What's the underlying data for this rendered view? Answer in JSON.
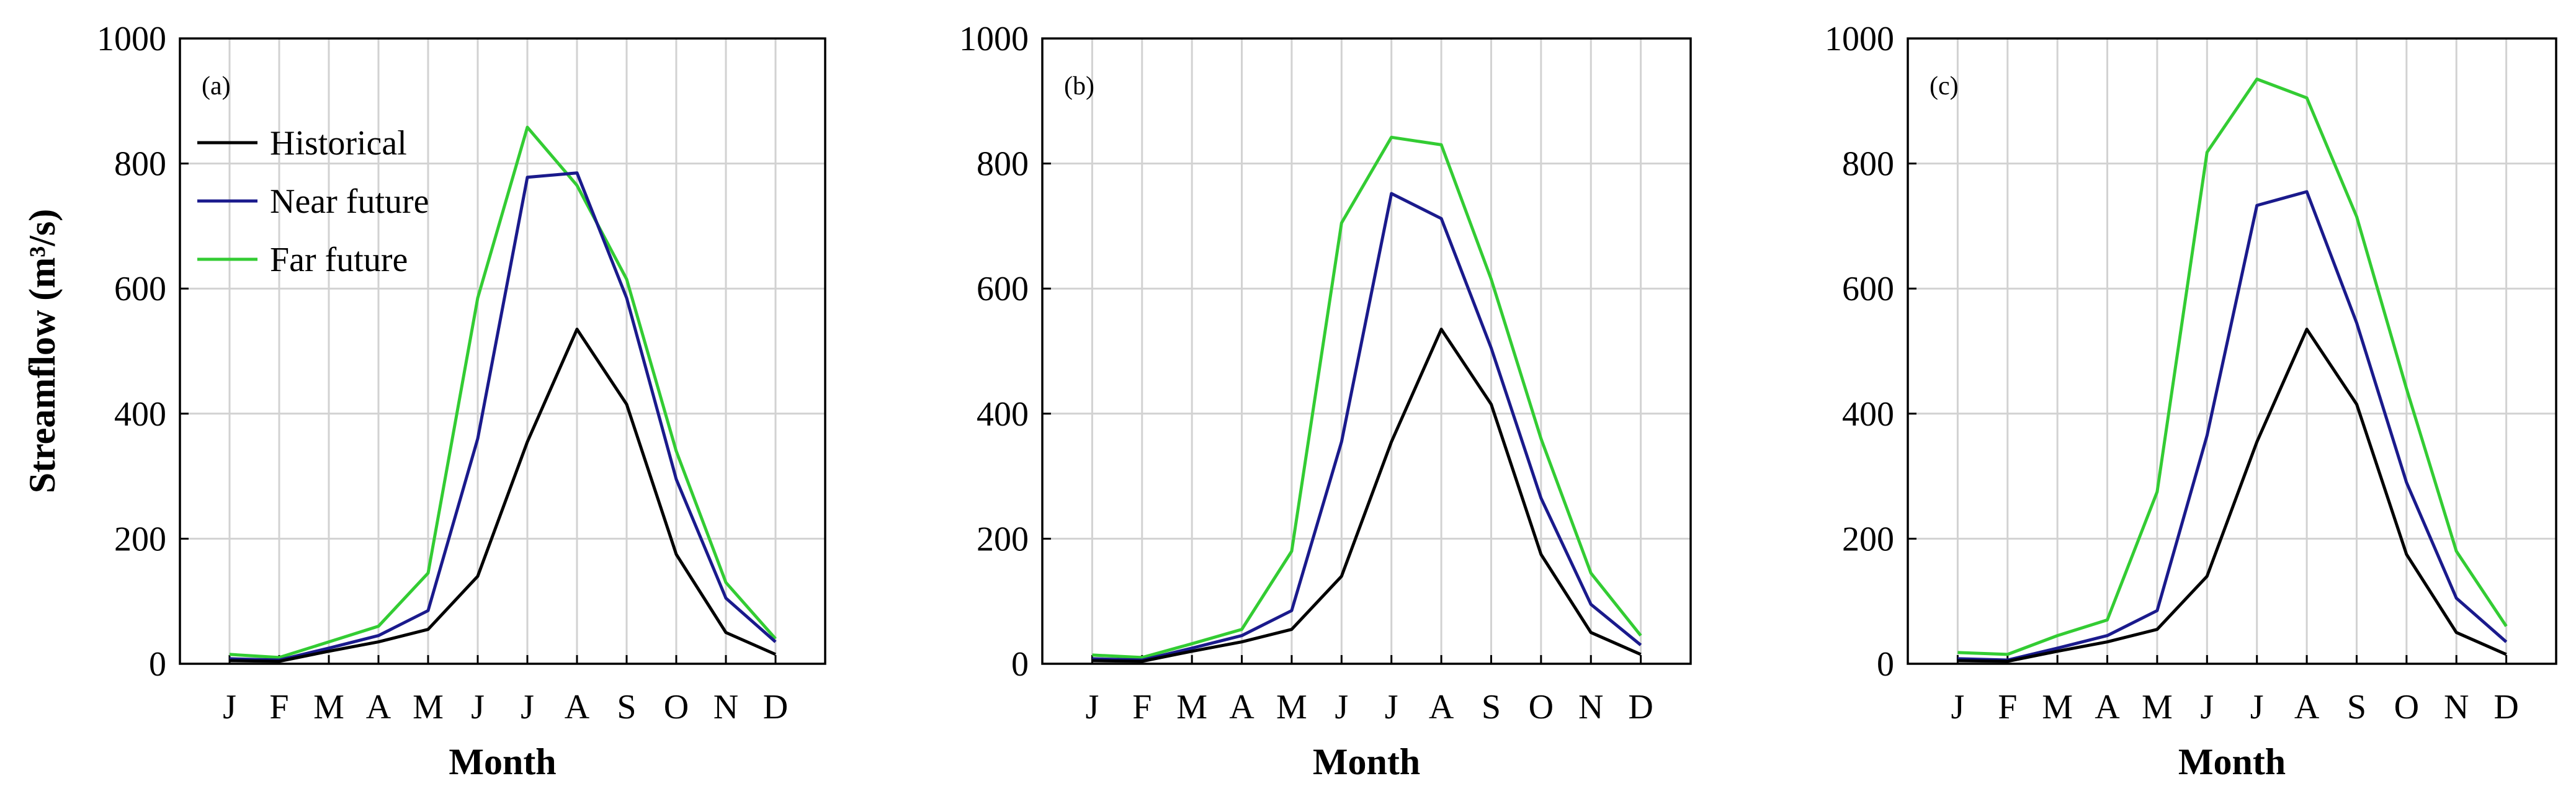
{
  "chart_data": [
    {
      "type": "line",
      "panel_label": "(a)",
      "xlabel": "Month",
      "ylabel": "Streamflow (m³/s)",
      "categories": [
        "J",
        "F",
        "M",
        "A",
        "M",
        "J",
        "J",
        "A",
        "S",
        "O",
        "N",
        "D"
      ],
      "ylim": [
        0,
        1000
      ],
      "yticks": [
        0,
        200,
        400,
        600,
        800,
        1000
      ],
      "grid": true,
      "legend_position": "top-left",
      "series": [
        {
          "name": "Historical",
          "color": "#000000",
          "values": [
            5,
            4,
            20,
            35,
            55,
            140,
            355,
            535,
            415,
            175,
            50,
            15
          ]
        },
        {
          "name": "Near future",
          "color": "#1a1a8c",
          "values": [
            8,
            6,
            25,
            45,
            85,
            360,
            778,
            785,
            585,
            295,
            105,
            35
          ]
        },
        {
          "name": "Far future",
          "color": "#33cc33",
          "values": [
            15,
            10,
            35,
            60,
            145,
            585,
            858,
            765,
            615,
            340,
            130,
            40
          ]
        }
      ]
    },
    {
      "type": "line",
      "panel_label": "(b)",
      "xlabel": "Month",
      "ylabel": "",
      "categories": [
        "J",
        "F",
        "M",
        "A",
        "M",
        "J",
        "J",
        "A",
        "S",
        "O",
        "N",
        "D"
      ],
      "ylim": [
        0,
        1000
      ],
      "yticks": [
        0,
        200,
        400,
        600,
        800,
        1000
      ],
      "grid": true,
      "series": [
        {
          "name": "Historical",
          "color": "#000000",
          "values": [
            5,
            4,
            20,
            35,
            55,
            140,
            355,
            535,
            415,
            175,
            50,
            15
          ]
        },
        {
          "name": "Near future",
          "color": "#1a1a8c",
          "values": [
            8,
            6,
            25,
            45,
            85,
            355,
            752,
            712,
            505,
            265,
            95,
            30
          ]
        },
        {
          "name": "Far future",
          "color": "#33cc33",
          "values": [
            14,
            10,
            32,
            55,
            180,
            705,
            842,
            830,
            615,
            360,
            145,
            45
          ]
        }
      ]
    },
    {
      "type": "line",
      "panel_label": "(c)",
      "xlabel": "Month",
      "ylabel": "",
      "categories": [
        "J",
        "F",
        "M",
        "A",
        "M",
        "J",
        "J",
        "A",
        "S",
        "O",
        "N",
        "D"
      ],
      "ylim": [
        0,
        1000
      ],
      "yticks": [
        0,
        200,
        400,
        600,
        800,
        1000
      ],
      "grid": true,
      "series": [
        {
          "name": "Historical",
          "color": "#000000",
          "values": [
            5,
            4,
            20,
            35,
            55,
            140,
            355,
            535,
            415,
            175,
            50,
            15
          ]
        },
        {
          "name": "Near future",
          "color": "#1a1a8c",
          "values": [
            8,
            6,
            25,
            45,
            85,
            365,
            733,
            755,
            545,
            290,
            105,
            35
          ]
        },
        {
          "name": "Far future",
          "color": "#33cc33",
          "values": [
            18,
            15,
            45,
            70,
            275,
            818,
            935,
            905,
            715,
            440,
            180,
            60
          ]
        }
      ]
    }
  ]
}
